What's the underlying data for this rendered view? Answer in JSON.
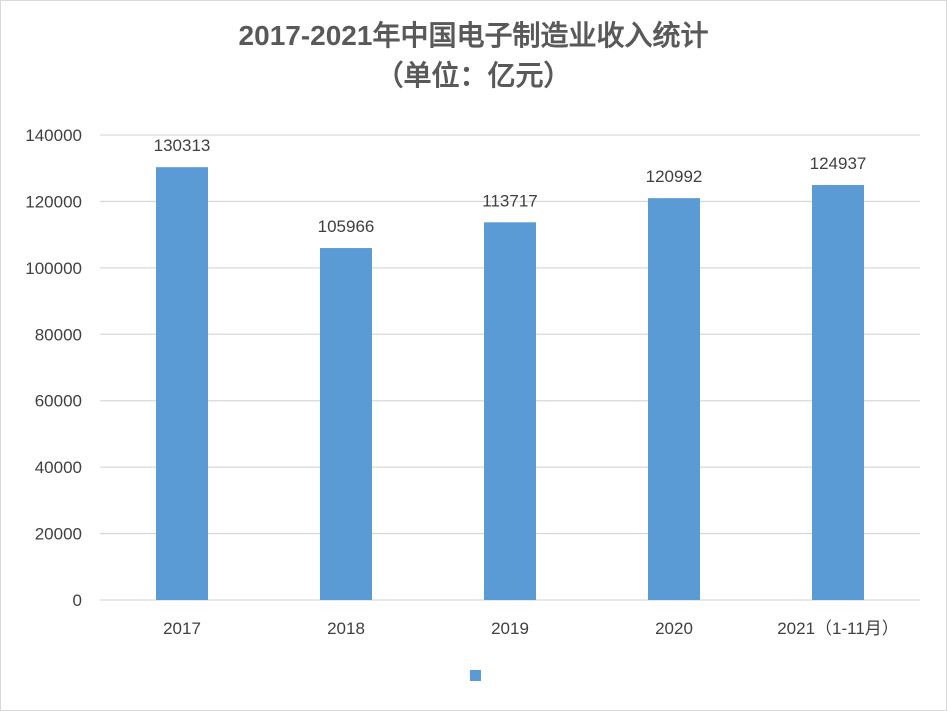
{
  "chart_data": {
    "type": "bar",
    "title_line1": "2017-2021年中国电子制造业收入统计",
    "title_line2": "（单位：亿元）",
    "categories": [
      "2017",
      "2018",
      "2019",
      "2020",
      "2021（1-11月）"
    ],
    "series": [
      {
        "values": [
          130313,
          105966,
          113717,
          120992,
          124937
        ]
      }
    ],
    "ylim": [
      0,
      140000
    ],
    "yticks": [
      0,
      20000,
      40000,
      60000,
      80000,
      100000,
      120000,
      140000
    ],
    "grid": true,
    "legend_position": "bottom",
    "bar_color": "#5b9bd5",
    "grid_color": "#d9d9d9"
  }
}
